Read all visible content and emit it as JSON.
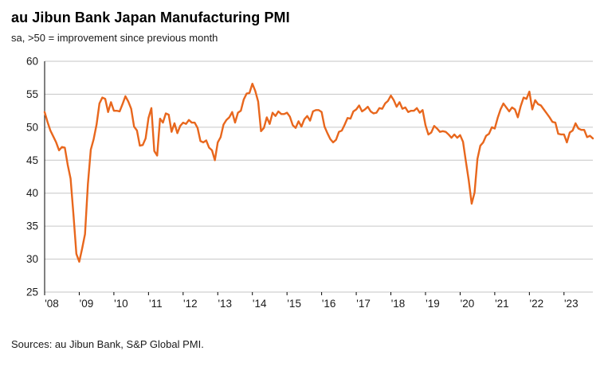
{
  "header": {
    "title": "au Jibun Bank Japan Manufacturing PMI",
    "subtitle": "sa, >50 = improvement since previous month"
  },
  "footer": {
    "source": "Sources: au Jibun Bank, S&P Global PMI."
  },
  "chart_data": {
    "type": "line",
    "title": "au Jibun Bank Japan Manufacturing PMI",
    "subtitle": "sa, >50 = improvement since previous month",
    "source": "Sources: au Jibun Bank, S&P Global PMI.",
    "ylabel": "",
    "xlabel": "",
    "ylim": [
      25,
      60
    ],
    "yticks": [
      25,
      30,
      35,
      40,
      45,
      50,
      55,
      60
    ],
    "xtick_labels": [
      "'08",
      "'09",
      "'10",
      "'11",
      "'12",
      "'13",
      "'14",
      "'15",
      "'16",
      "'17",
      "'18",
      "'19",
      "'20",
      "'21",
      "'22",
      "'23"
    ],
    "grid": true,
    "legend": "none",
    "line_color": "#e8671d",
    "grid_color": "#c6c6c6",
    "axis_color": "#000000",
    "frequency": "monthly",
    "start": "2008-01",
    "series": [
      {
        "name": "Japan Manufacturing PMI (sa)",
        "values_by_year": {
          "2008": [
            52.3,
            50.8,
            49.5,
            48.6,
            47.7,
            46.5,
            47.0,
            46.9,
            44.3,
            42.2,
            36.7,
            30.8
          ],
          "2009": [
            29.6,
            31.6,
            33.8,
            41.4,
            46.6,
            48.2,
            50.4,
            53.6,
            54.5,
            54.3,
            52.3,
            53.8
          ],
          "2010": [
            52.5,
            52.5,
            52.4,
            53.5,
            54.7,
            53.9,
            52.8,
            50.1,
            49.5,
            47.2,
            47.3,
            48.3
          ],
          "2011": [
            51.4,
            52.9,
            46.4,
            45.7,
            51.3,
            50.7,
            52.1,
            51.9,
            49.3,
            50.6,
            49.1,
            50.2
          ],
          "2012": [
            50.7,
            50.5,
            51.1,
            50.7,
            50.7,
            49.9,
            47.9,
            47.7,
            48.0,
            46.9,
            46.5,
            45.0
          ],
          "2013": [
            47.7,
            48.5,
            50.4,
            51.1,
            51.5,
            52.3,
            50.7,
            52.2,
            52.5,
            54.2,
            55.1,
            55.2
          ],
          "2014": [
            56.6,
            55.5,
            53.9,
            49.4,
            49.9,
            51.5,
            50.5,
            52.2,
            51.7,
            52.4,
            52.0,
            52.0
          ],
          "2015": [
            52.2,
            51.6,
            50.3,
            49.9,
            50.9,
            50.1,
            51.2,
            51.7,
            51.0,
            52.4,
            52.6,
            52.6
          ],
          "2016": [
            52.3,
            50.1,
            49.1,
            48.2,
            47.7,
            48.1,
            49.3,
            49.5,
            50.4,
            51.4,
            51.3,
            52.4
          ],
          "2017": [
            52.7,
            53.3,
            52.4,
            52.7,
            53.1,
            52.4,
            52.1,
            52.2,
            52.9,
            52.8,
            53.6,
            54.0
          ],
          "2018": [
            54.8,
            54.1,
            53.1,
            53.8,
            52.8,
            53.0,
            52.3,
            52.5,
            52.5,
            52.9,
            52.2,
            52.6
          ],
          "2019": [
            50.3,
            48.9,
            49.2,
            50.2,
            49.8,
            49.3,
            49.4,
            49.3,
            48.9,
            48.4,
            48.9,
            48.4
          ],
          "2020": [
            48.8,
            47.8,
            44.8,
            41.9,
            38.4,
            40.1,
            45.2,
            47.2,
            47.7,
            48.7,
            49.0,
            50.0
          ],
          "2021": [
            49.8,
            51.4,
            52.7,
            53.6,
            53.0,
            52.4,
            53.0,
            52.7,
            51.5,
            53.2,
            54.5,
            54.3
          ],
          "2022": [
            55.4,
            52.7,
            54.1,
            53.5,
            53.3,
            52.7,
            52.1,
            51.5,
            50.8,
            50.7,
            49.0,
            48.9
          ],
          "2023": [
            48.9,
            47.7,
            49.2,
            49.5,
            50.6,
            49.8,
            49.6,
            49.6,
            48.5,
            48.7,
            48.3
          ]
        }
      }
    ]
  }
}
